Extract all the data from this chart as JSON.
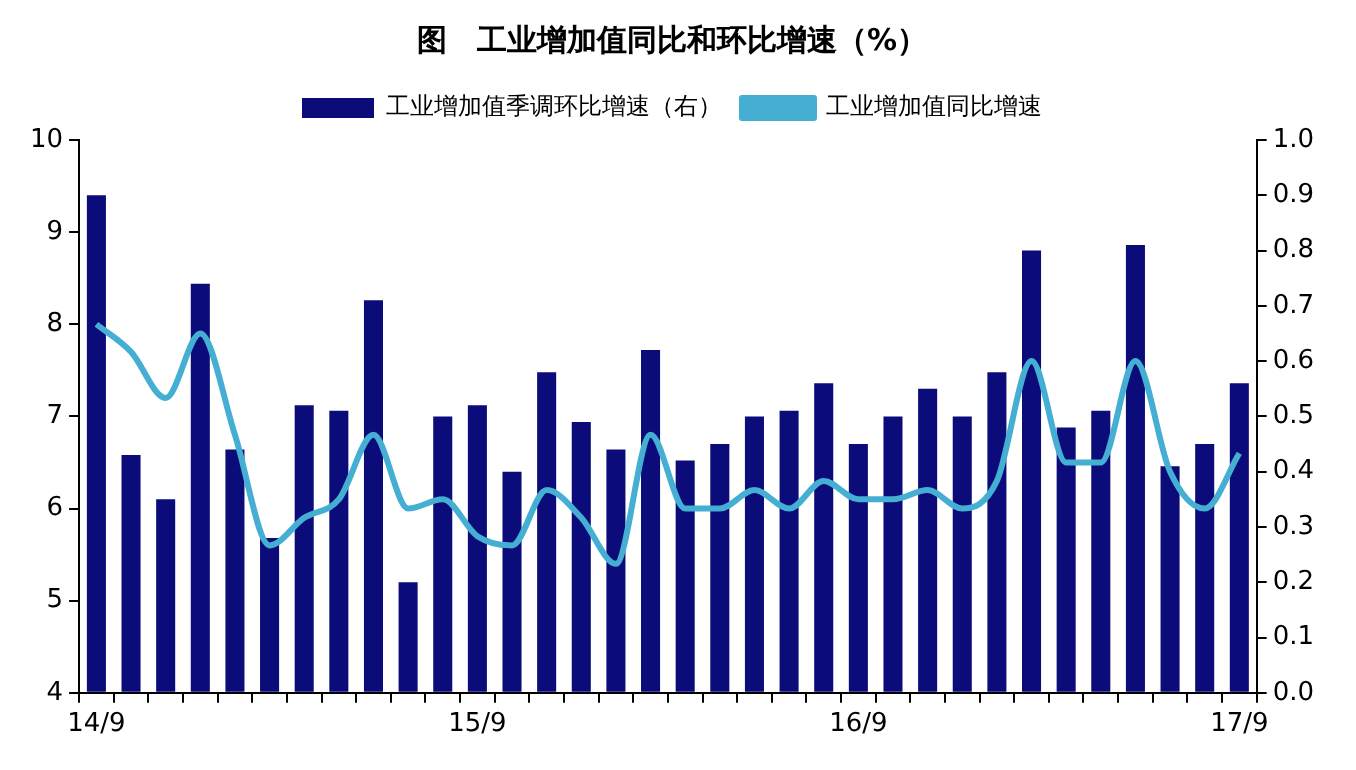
{
  "chart_data": {
    "type": "bar",
    "title": "图　工业增加值同比和环比增速（%）",
    "categories": [
      "14/9",
      null,
      null,
      null,
      null,
      null,
      null,
      null,
      null,
      null,
      null,
      "15/9",
      null,
      null,
      null,
      null,
      null,
      null,
      null,
      null,
      null,
      null,
      "16/9",
      null,
      null,
      null,
      null,
      null,
      null,
      null,
      null,
      null,
      null,
      "17/9"
    ],
    "series": [
      {
        "name": "工业增加值季调环比增速（右）",
        "axis": "y2",
        "color": "#0b0b7a",
        "values": [
          0.9,
          0.43,
          0.35,
          0.74,
          0.44,
          0.28,
          0.52,
          0.51,
          0.71,
          0.2,
          0.5,
          0.52,
          0.4,
          0.58,
          0.49,
          0.44,
          0.62,
          0.42,
          0.45,
          0.5,
          0.51,
          0.56,
          0.45,
          0.5,
          0.55,
          0.5,
          0.58,
          0.8,
          0.48,
          0.51,
          0.81,
          0.41,
          0.45,
          0.56
        ]
      },
      {
        "name": "工业增加值同比增速",
        "type": "line",
        "axis": "y",
        "color": "#45aed3",
        "values": [
          8.0,
          7.7,
          7.2,
          7.9,
          6.8,
          5.6,
          5.9,
          6.1,
          6.8,
          6.0,
          6.1,
          5.7,
          5.6,
          6.2,
          5.9,
          5.4,
          6.8,
          6.0,
          6.0,
          6.2,
          6.0,
          6.3,
          6.1,
          6.1,
          6.2,
          6.0,
          6.3,
          7.6,
          6.5,
          6.5,
          7.6,
          6.4,
          6.0,
          6.6
        ]
      }
    ],
    "ylim": [
      4,
      10
    ],
    "yticks": [
      4,
      5,
      6,
      7,
      8,
      9,
      10
    ],
    "y2lim": [
      0,
      1
    ],
    "y2ticks": [
      {
        "value": 0,
        "label": "0.0"
      },
      {
        "value": 0.1,
        "label": "0.1"
      },
      {
        "value": 0.2,
        "label": "0.2"
      },
      {
        "value": 0.3,
        "label": "0.3"
      },
      {
        "value": 0.4,
        "label": "0.4"
      },
      {
        "value": 0.5,
        "label": "0.5"
      },
      {
        "value": 0.6,
        "label": "0.6"
      },
      {
        "value": 0.7,
        "label": "0.7"
      },
      {
        "value": 0.8,
        "label": "0.8"
      },
      {
        "value": 0.9,
        "label": "0.9"
      },
      {
        "value": 1,
        "label": "1.0"
      }
    ],
    "legend": "top",
    "grid": false,
    "marker": "none",
    "line_style": "solid"
  }
}
